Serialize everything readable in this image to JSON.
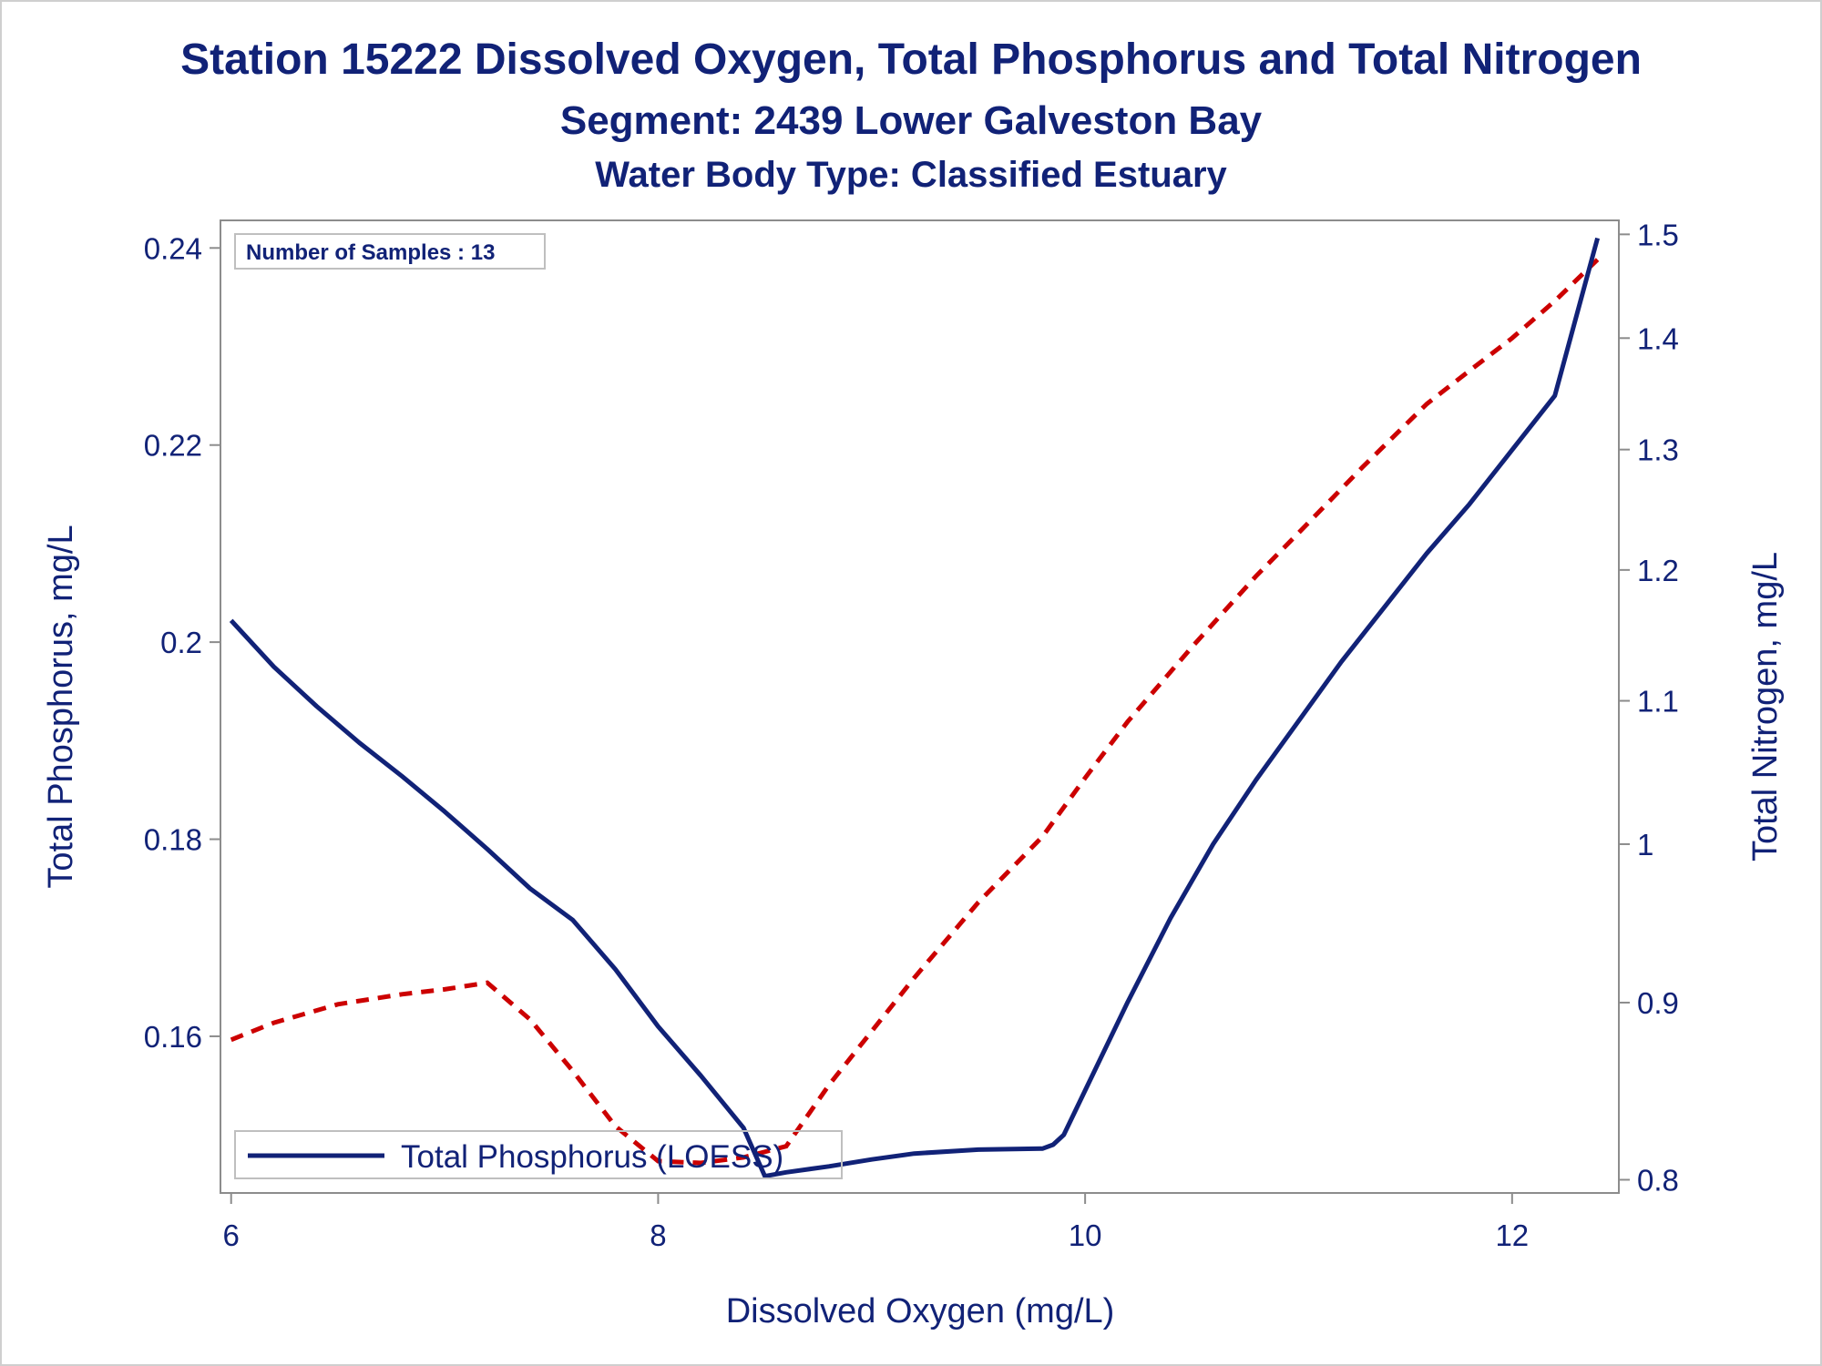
{
  "titles": {
    "line1": "Station 15222  Dissolved Oxygen, Total Phosphorus and Total Nitrogen",
    "line2": "Segment: 2439  Lower Galveston Bay",
    "line3": "Water Body Type: Classified Estuary"
  },
  "inset": {
    "label": "Number of Samples : 13"
  },
  "legend": {
    "label": "Total Phosphorus (LOESS)"
  },
  "colors": {
    "phosphorus": "#112277",
    "nitrogen": "#cc0000",
    "text": "#112277",
    "axis": "#8c8c8c"
  },
  "chart_data": {
    "type": "line",
    "xlabel": "Dissolved Oxygen (mg/L)",
    "ylabel": "Total Phosphorus, mg/L",
    "y2label": "Total Nitrogen, mg/L",
    "xlim": [
      5.95,
      12.5
    ],
    "ylim": [
      0.1441,
      0.2428
    ],
    "y2lim": [
      0.793,
      1.514
    ],
    "y2scale": "log",
    "grid": false,
    "legend_position": "bottom-left",
    "xticks": [
      6,
      8,
      10,
      12
    ],
    "xtick_labels": [
      "6",
      "8",
      "10",
      "12"
    ],
    "yticks": [
      0.16,
      0.18,
      0.2,
      0.22,
      0.24
    ],
    "ytick_labels": [
      "0.16",
      "0.18",
      "0.2",
      "0.22",
      "0.24"
    ],
    "y2ticks": [
      0.8,
      0.9,
      1.0,
      1.1,
      1.2,
      1.3,
      1.4,
      1.5
    ],
    "y2tick_labels": [
      "0.8",
      "0.9",
      "1",
      "1.1",
      "1.2",
      "1.3",
      "1.4",
      "1.5"
    ],
    "series": [
      {
        "name": "Total Phosphorus (LOESS)",
        "axis": "left",
        "style": "solid",
        "x": [
          6.0,
          6.2,
          6.4,
          6.6,
          6.8,
          7.0,
          7.2,
          7.4,
          7.6,
          7.8,
          8.0,
          8.2,
          8.4,
          8.5,
          8.6,
          8.8,
          9.0,
          9.2,
          9.5,
          9.8,
          9.85,
          9.9,
          10.0,
          10.2,
          10.4,
          10.6,
          10.8,
          11.0,
          11.2,
          11.4,
          11.6,
          11.8,
          12.0,
          12.2,
          12.4
        ],
        "y": [
          0.2022,
          0.1975,
          0.1935,
          0.1898,
          0.1864,
          0.1828,
          0.179,
          0.175,
          0.1718,
          0.1668,
          0.161,
          0.156,
          0.1507,
          0.1458,
          0.1462,
          0.1468,
          0.1475,
          0.1481,
          0.1485,
          0.1486,
          0.149,
          0.15,
          0.1545,
          0.1635,
          0.172,
          0.1795,
          0.186,
          0.192,
          0.198,
          0.2035,
          0.209,
          0.214,
          0.2195,
          0.225,
          0.241
        ]
      },
      {
        "name": "",
        "axis": "right",
        "style": "dashed",
        "x": [
          6.0,
          6.2,
          6.5,
          6.8,
          7.0,
          7.2,
          7.4,
          7.6,
          7.8,
          8.0,
          8.2,
          8.4,
          8.6,
          8.8,
          9.0,
          9.2,
          9.5,
          9.8,
          10.0,
          10.2,
          10.5,
          10.8,
          11.0,
          11.3,
          11.6,
          11.8,
          12.0,
          12.2,
          12.4
        ],
        "y": [
          0.878,
          0.888,
          0.899,
          0.905,
          0.908,
          0.912,
          0.89,
          0.86,
          0.829,
          0.81,
          0.809,
          0.812,
          0.818,
          0.852,
          0.883,
          0.915,
          0.962,
          1.005,
          1.045,
          1.085,
          1.14,
          1.195,
          1.23,
          1.285,
          1.34,
          1.37,
          1.4,
          1.435,
          1.475
        ]
      }
    ]
  }
}
